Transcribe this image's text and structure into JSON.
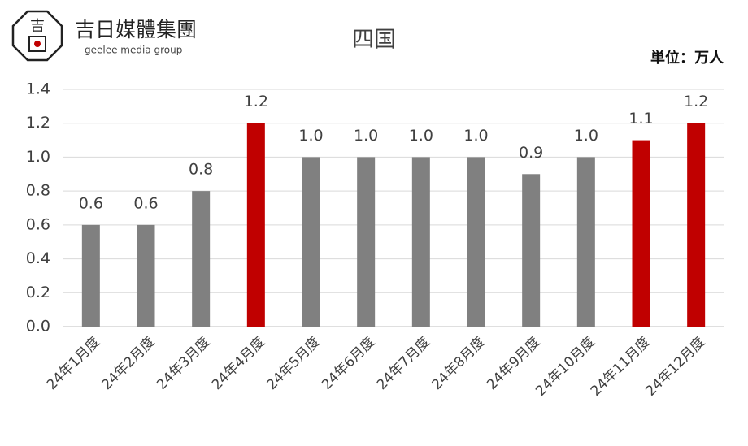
{
  "logo": {
    "name": "吉日媒體集團",
    "tagline": "geelee media group",
    "mark": "吉"
  },
  "chart_data": {
    "type": "bar",
    "title": "四国",
    "unit_label": "単位：万人",
    "categories": [
      "24年1月度",
      "24年2月度",
      "24年3月度",
      "24年4月度",
      "24年5月度",
      "24年6月度",
      "24年7月度",
      "24年8月度",
      "24年9月度",
      "24年10月度",
      "24年11月度",
      "24年12月度"
    ],
    "values": [
      0.6,
      0.6,
      0.8,
      1.2,
      1.0,
      1.0,
      1.0,
      1.0,
      0.9,
      1.0,
      1.1,
      1.2
    ],
    "value_labels": [
      "0.6",
      "0.6",
      "0.8",
      "1.2",
      "1.0",
      "1.0",
      "1.0",
      "1.0",
      "0.9",
      "1.0",
      "1.1",
      "1.2"
    ],
    "colors": [
      "#808080",
      "#808080",
      "#808080",
      "#c00000",
      "#808080",
      "#808080",
      "#808080",
      "#808080",
      "#808080",
      "#808080",
      "#c00000",
      "#c00000"
    ],
    "ylim": [
      0,
      1.4
    ],
    "yticks": [
      {
        "value": 0,
        "label": "0.0"
      },
      0.2,
      0.4,
      0.6,
      0.8,
      {
        "value": 1,
        "label": "1.0"
      },
      1.2,
      1.4
    ],
    "grid": true
  }
}
